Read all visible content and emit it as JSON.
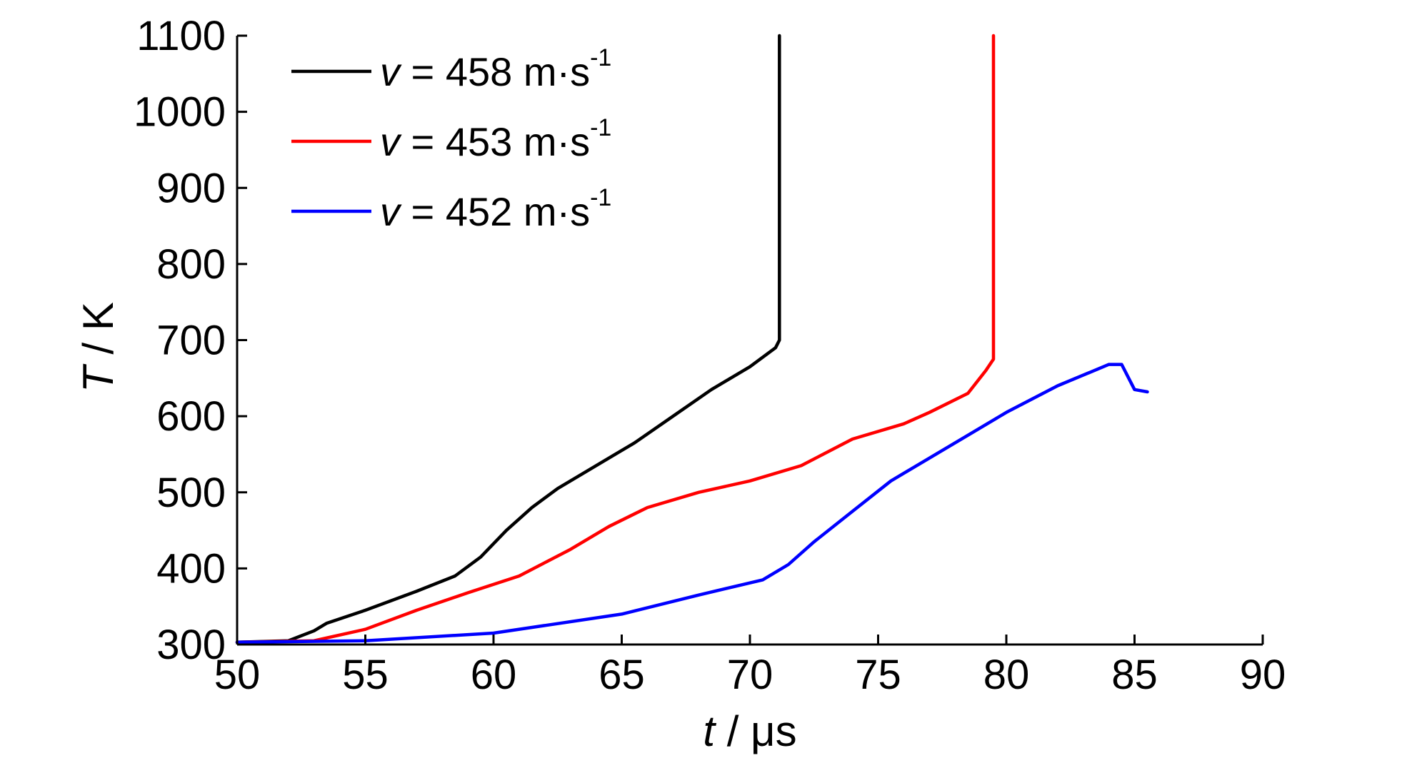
{
  "chart_data": {
    "type": "line",
    "title": "",
    "xlabel": {
      "var": "t",
      "unit": " / μs"
    },
    "ylabel": {
      "var": "T",
      "unit": " / K"
    },
    "xlim": [
      50,
      90
    ],
    "ylim": [
      300,
      1100
    ],
    "xticks": [
      50,
      55,
      60,
      65,
      70,
      75,
      80,
      85,
      90
    ],
    "yticks": [
      300,
      400,
      500,
      600,
      700,
      800,
      900,
      1000,
      1100
    ],
    "legend_position": "top-left",
    "grid": false,
    "series": [
      {
        "name": "v = 458 m·s",
        "legend": {
          "var": "v",
          "text": " = 458 m·s",
          "sup": "-1"
        },
        "color": "#000000",
        "x": [
          50,
          52,
          53,
          53.5,
          55,
          57,
          58.5,
          59.5,
          60.5,
          61.5,
          62.5,
          64,
          65.5,
          67,
          68.5,
          70,
          71,
          71.15,
          71.15
        ],
        "y": [
          303,
          305,
          318,
          328,
          345,
          370,
          390,
          415,
          450,
          480,
          505,
          535,
          565,
          600,
          635,
          665,
          690,
          700,
          1100
        ]
      },
      {
        "name": "v = 453 m·s",
        "legend": {
          "var": "v",
          "text": " = 453 m·s",
          "sup": "-1"
        },
        "color": "#ff0000",
        "x": [
          50,
          53,
          55,
          57,
          59,
          61,
          63,
          64.5,
          66,
          68,
          70,
          72,
          74,
          76,
          77,
          78.5,
          79.2,
          79.5,
          79.5
        ],
        "y": [
          303,
          305,
          320,
          345,
          368,
          390,
          425,
          455,
          480,
          500,
          515,
          535,
          570,
          590,
          605,
          630,
          660,
          675,
          1100
        ]
      },
      {
        "name": "v = 452 m·s",
        "legend": {
          "var": "v",
          "text": " = 452 m·s",
          "sup": "-1"
        },
        "color": "#0000ff",
        "x": [
          50,
          55,
          60,
          65,
          68,
          70.5,
          71.5,
          72.5,
          74,
          75.5,
          77,
          78.5,
          80,
          82,
          84,
          84.5,
          85,
          85.5
        ],
        "y": [
          303,
          305,
          315,
          340,
          365,
          385,
          405,
          435,
          475,
          515,
          545,
          575,
          605,
          640,
          668,
          668,
          635,
          632
        ]
      }
    ]
  }
}
